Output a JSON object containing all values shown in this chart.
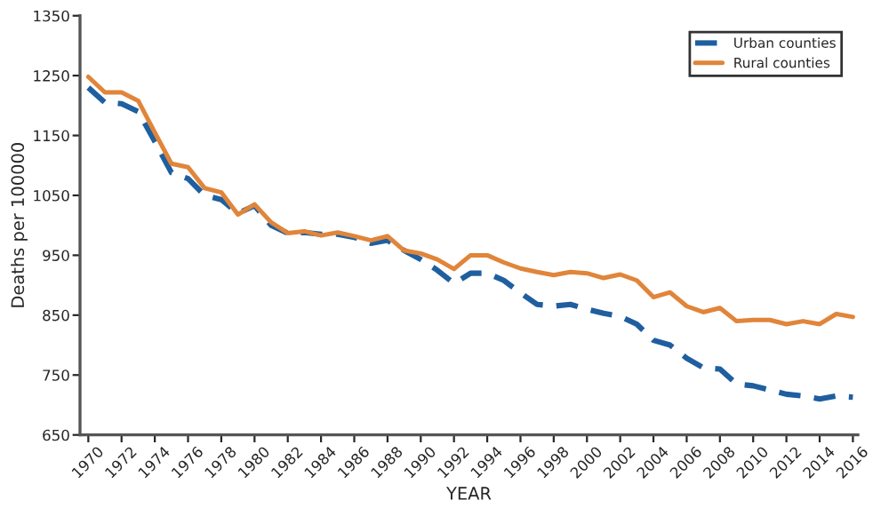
{
  "chart_data": {
    "type": "line",
    "xlabel": "YEAR",
    "ylabel": "Deaths per 100000",
    "x": [
      1970,
      1971,
      1972,
      1973,
      1974,
      1975,
      1976,
      1977,
      1978,
      1979,
      1980,
      1981,
      1982,
      1983,
      1984,
      1985,
      1986,
      1987,
      1988,
      1989,
      1990,
      1991,
      1992,
      1993,
      1994,
      1995,
      1996,
      1997,
      1998,
      1999,
      2000,
      2001,
      2002,
      2003,
      2004,
      2005,
      2006,
      2007,
      2008,
      2009,
      2010,
      2011,
      2012,
      2013,
      2014,
      2015,
      2016
    ],
    "series": [
      {
        "name": "Urban counties",
        "color": "#1f5f9f",
        "line_style": "dashed",
        "values": [
          1230,
          1205,
          1203,
          1190,
          1140,
          1088,
          1078,
          1050,
          1043,
          1020,
          1033,
          1000,
          987,
          988,
          985,
          985,
          980,
          970,
          975,
          958,
          943,
          925,
          903,
          920,
          920,
          908,
          887,
          868,
          865,
          868,
          860,
          853,
          848,
          835,
          808,
          800,
          778,
          762,
          760,
          735,
          732,
          725,
          718,
          715,
          710,
          715,
          713
        ]
      },
      {
        "name": "Rural counties",
        "color": "#e0853a",
        "line_style": "solid",
        "values": [
          1248,
          1222,
          1222,
          1208,
          1155,
          1103,
          1097,
          1062,
          1055,
          1018,
          1035,
          1005,
          987,
          990,
          983,
          988,
          982,
          975,
          982,
          958,
          953,
          943,
          927,
          950,
          950,
          938,
          928,
          922,
          917,
          922,
          920,
          912,
          918,
          908,
          880,
          888,
          865,
          855,
          862,
          840,
          842,
          842,
          835,
          840,
          835,
          852,
          847
        ]
      }
    ],
    "xlim": [
      1969.5,
      2016.3
    ],
    "xticks": [
      1970,
      1972,
      1974,
      1976,
      1978,
      1980,
      1982,
      1984,
      1986,
      1988,
      1990,
      1992,
      1994,
      1996,
      1998,
      2000,
      2002,
      2004,
      2006,
      2008,
      2010,
      2012,
      2014,
      2016
    ],
    "ylim": [
      650,
      1350
    ],
    "yticks": [
      650,
      750,
      850,
      950,
      1050,
      1150,
      1250,
      1350
    ],
    "grid": false,
    "legend": "top right",
    "marker": "none"
  }
}
